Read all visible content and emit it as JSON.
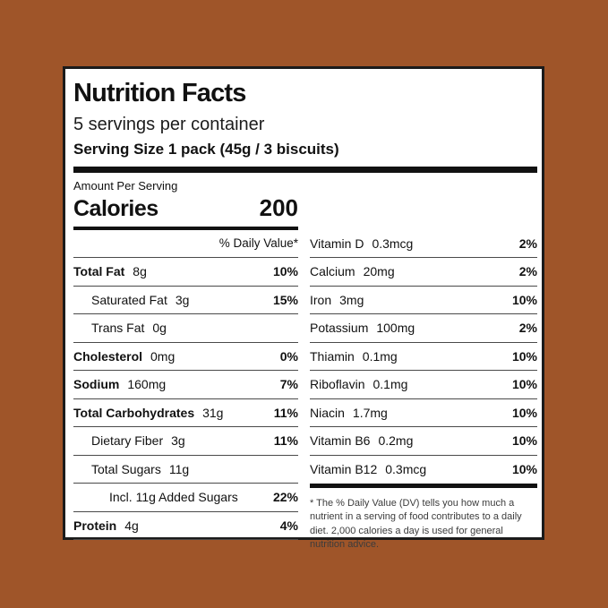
{
  "colors": {
    "background": "#9F5529",
    "panel": "#FFFFFF",
    "ink": "#111111"
  },
  "label": {
    "title": "Nutrition Facts",
    "servings_per_container": "5 servings per container",
    "serving_size": "Serving Size 1 pack (45g / 3 biscuits)",
    "amount_per_serving": "Amount Per Serving",
    "calories_label": "Calories",
    "calories_value": "200",
    "daily_value_header": "% Daily Value*",
    "left_rows": [
      {
        "name": "Total Fat",
        "amount": "8g",
        "pct": "10%"
      },
      {
        "name": "Saturated Fat",
        "amount": "3g",
        "pct": "15%"
      },
      {
        "name": "Trans Fat",
        "amount": "0g",
        "pct": ""
      },
      {
        "name": "Cholesterol",
        "amount": "0mg",
        "pct": "0%"
      },
      {
        "name": "Sodium",
        "amount": "160mg",
        "pct": "7%"
      },
      {
        "name": "Total Carbohydrates",
        "amount": "31g",
        "pct": "11%"
      },
      {
        "name": "Dietary Fiber",
        "amount": "3g",
        "pct": "11%"
      },
      {
        "name": "Total Sugars",
        "amount": "11g",
        "pct": ""
      },
      {
        "name": "Incl. 11g Added Sugars",
        "amount": "",
        "pct": "22%"
      },
      {
        "name": "Protein",
        "amount": "4g",
        "pct": "4%"
      }
    ],
    "right_rows": [
      {
        "name": "Vitamin D",
        "amount": "0.3mcg",
        "pct": "2%"
      },
      {
        "name": "Calcium",
        "amount": "20mg",
        "pct": "2%"
      },
      {
        "name": "Iron",
        "amount": "3mg",
        "pct": "10%"
      },
      {
        "name": "Potassium",
        "amount": "100mg",
        "pct": "2%"
      },
      {
        "name": "Thiamin",
        "amount": "0.1mg",
        "pct": "10%"
      },
      {
        "name": "Riboflavin",
        "amount": "0.1mg",
        "pct": "10%"
      },
      {
        "name": "Niacin",
        "amount": "1.7mg",
        "pct": "10%"
      },
      {
        "name": "Vitamin B6",
        "amount": "0.2mg",
        "pct": "10%"
      },
      {
        "name": "Vitamin B12",
        "amount": "0.3mcg",
        "pct": "10%"
      }
    ],
    "footnote": "* The % Daily Value (DV) tells you how much a nutrient in a serving of food contributes to a daily diet. 2,000 calories a day is used for general nutrition advice."
  }
}
